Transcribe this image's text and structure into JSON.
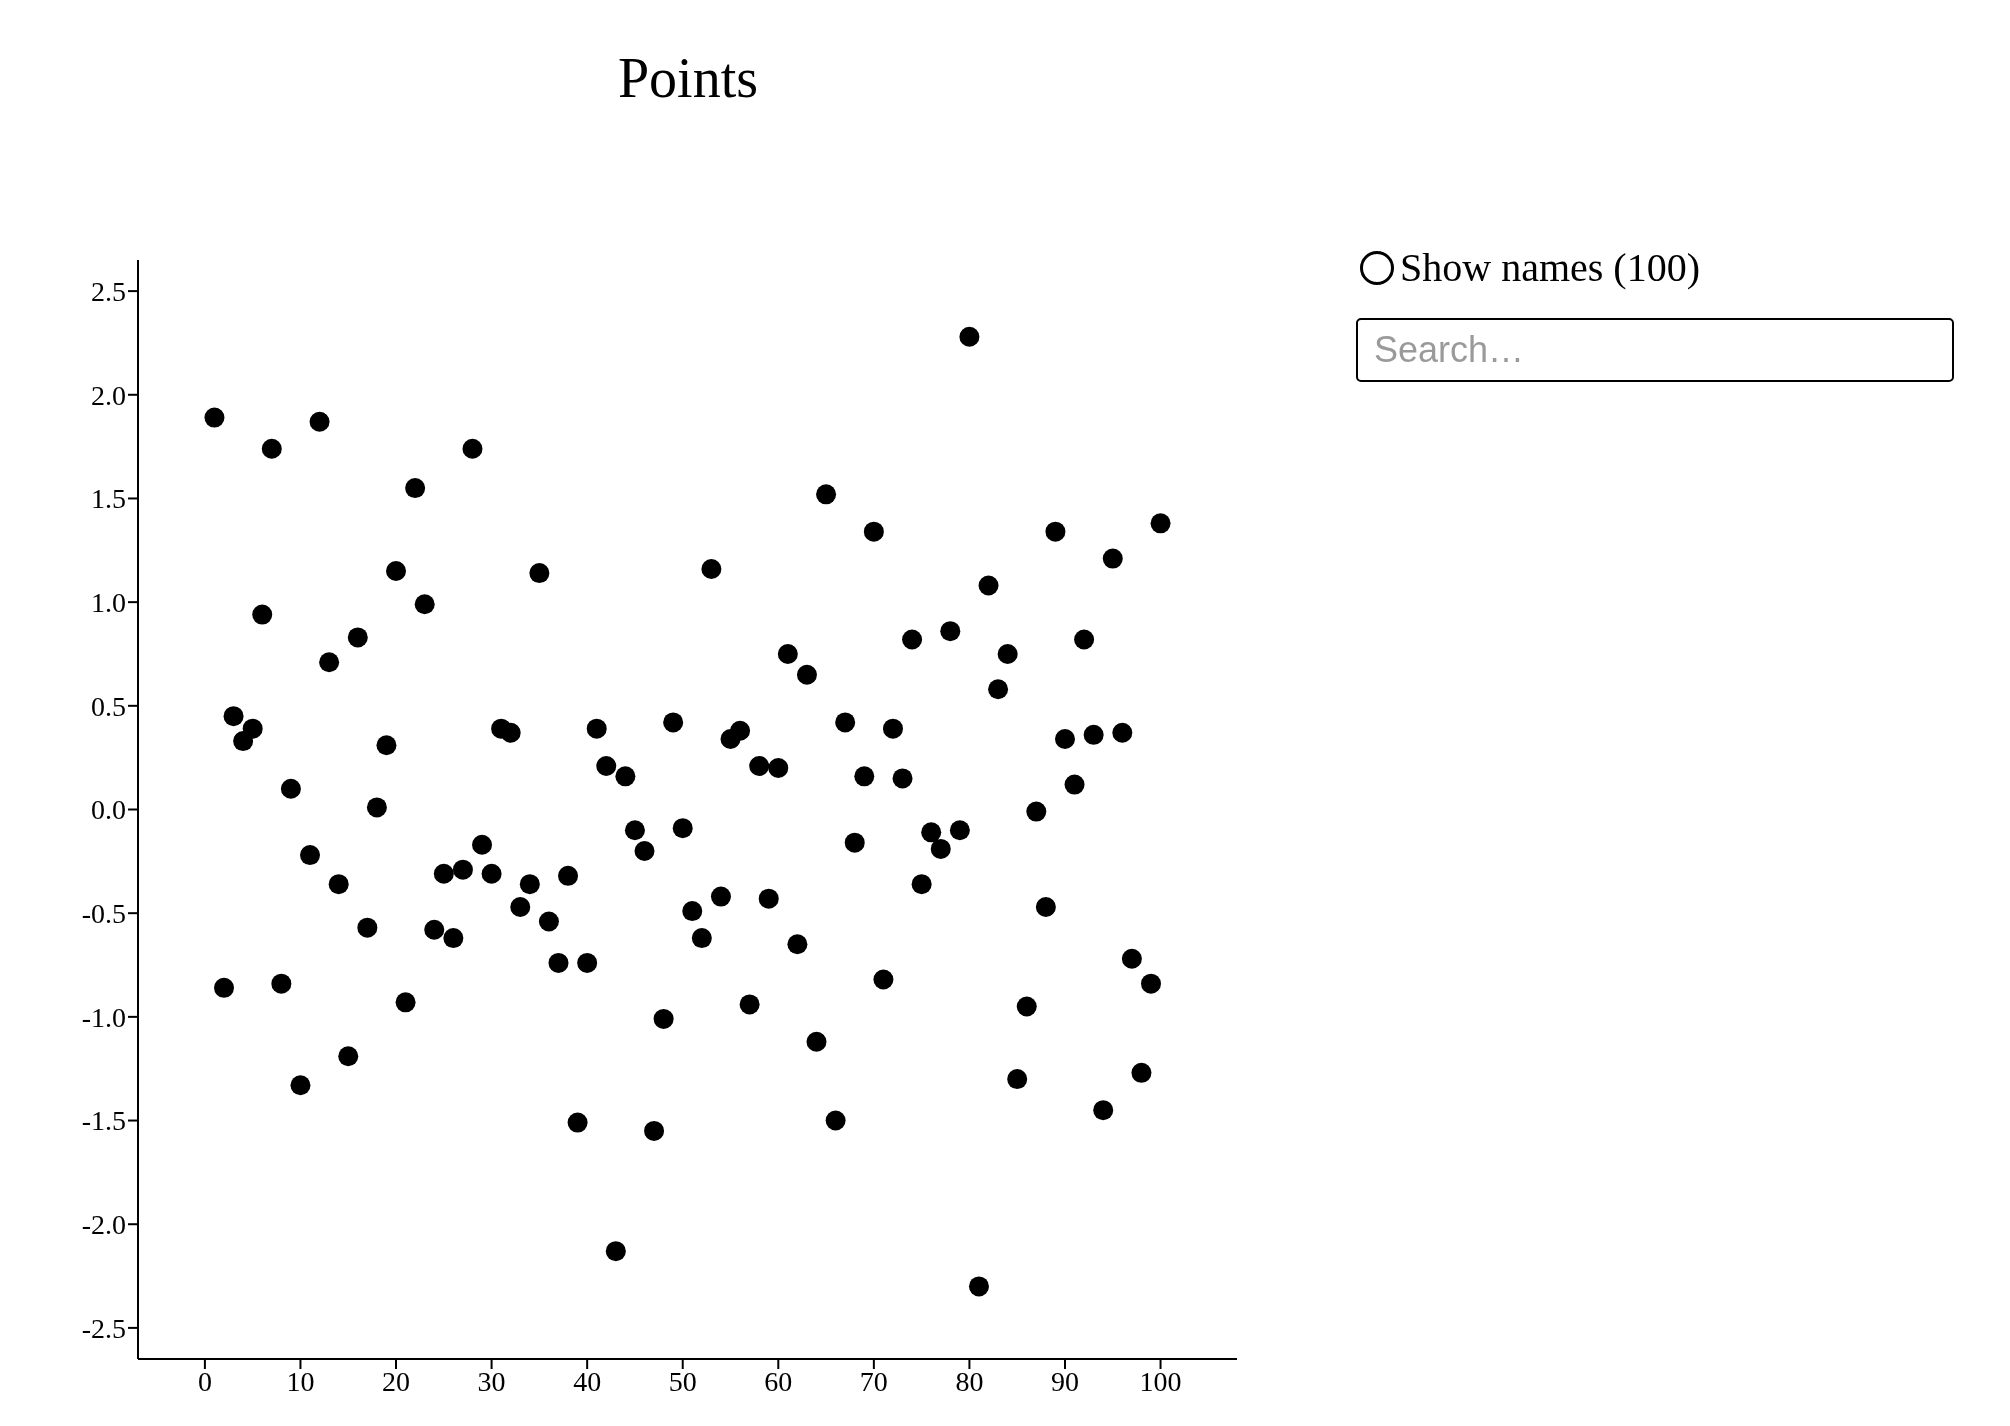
{
  "chart_data": {
    "type": "scatter",
    "title": "Points",
    "annotations": [
      "Show names (100)",
      "Search…"
    ],
    "x": [
      1,
      2,
      3,
      4,
      5,
      6,
      7,
      8,
      9,
      10,
      11,
      12,
      13,
      14,
      15,
      16,
      17,
      18,
      19,
      20,
      21,
      22,
      23,
      24,
      25,
      26,
      27,
      28,
      29,
      30,
      31,
      32,
      33,
      34,
      35,
      36,
      37,
      38,
      39,
      40,
      41,
      42,
      43,
      44,
      45,
      46,
      47,
      48,
      49,
      50,
      51,
      52,
      53,
      54,
      55,
      56,
      57,
      58,
      59,
      60,
      61,
      62,
      63,
      64,
      65,
      66,
      67,
      68,
      69,
      70,
      71,
      72,
      73,
      74,
      75,
      76,
      77,
      78,
      79,
      80,
      81,
      82,
      83,
      84,
      85,
      86,
      87,
      88,
      89,
      90,
      91,
      92,
      93,
      94,
      95,
      96,
      97,
      98,
      99,
      100
    ],
    "series": [
      {
        "color": "#000000",
        "values": [
          1.89,
          -0.86,
          0.45,
          0.33,
          0.39,
          0.94,
          1.74,
          -0.84,
          0.1,
          -1.33,
          -0.22,
          1.87,
          0.71,
          -0.36,
          -1.19,
          0.83,
          -0.57,
          0.01,
          0.31,
          1.15,
          -0.93,
          1.55,
          0.99,
          -0.58,
          -0.31,
          -0.62,
          -0.29,
          1.74,
          -0.17,
          -0.31,
          0.39,
          0.37,
          -0.47,
          -0.36,
          1.14,
          -0.54,
          -0.74,
          -0.32,
          -1.51,
          -0.74,
          0.39,
          0.21,
          -2.13,
          0.16,
          -0.1,
          -0.2,
          -1.55,
          -1.01,
          0.42,
          -0.09,
          -0.49,
          -0.62,
          1.16,
          -0.42,
          0.34,
          0.38,
          -0.94,
          0.21,
          -0.43,
          0.2,
          0.75,
          -0.65,
          0.65,
          -1.12,
          1.52,
          -1.5,
          0.42,
          -0.16,
          0.16,
          1.34,
          -0.82,
          0.39,
          0.15,
          0.82,
          -0.36,
          -0.11,
          -0.19,
          0.86,
          -0.1,
          2.28,
          -2.3,
          1.08,
          0.58,
          0.75,
          -1.3,
          -0.95,
          -0.01,
          -0.47,
          1.34,
          0.34,
          0.12,
          0.82,
          0.36,
          -1.45,
          1.21,
          0.37,
          -0.72,
          -1.27,
          -0.84,
          1.38
        ]
      }
    ],
    "xlim": [
      -7,
      108
    ],
    "xticks": [
      0,
      10,
      20,
      30,
      40,
      50,
      60,
      70,
      80,
      90,
      100
    ],
    "ylim": [
      -2.65,
      2.65
    ],
    "yticks": [
      -2.5,
      {
        "value": -2,
        "label": "-2.0"
      },
      -1.5,
      {
        "value": -1,
        "label": "-1.0"
      },
      -0.5,
      {
        "value": 0,
        "label": "0.0"
      },
      0.5,
      {
        "value": 1,
        "label": "1.0"
      },
      1.5,
      {
        "value": 2,
        "label": "2.0"
      },
      2.5
    ],
    "marker": "circle",
    "grid": false,
    "legend": false
  }
}
